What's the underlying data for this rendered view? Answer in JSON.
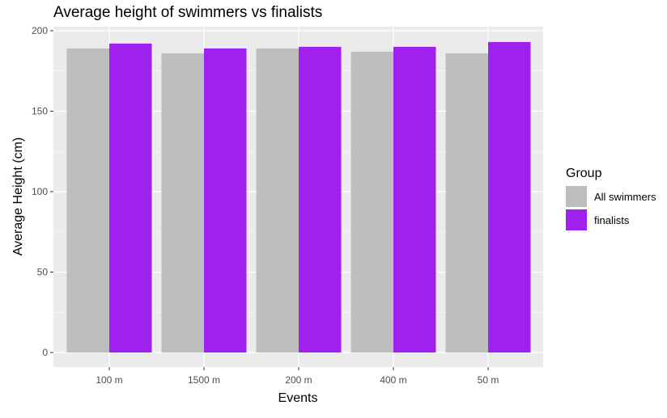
{
  "chart_data": {
    "type": "bar",
    "title": "Average height of swimmers vs finalists",
    "xlabel": "Events",
    "ylabel": "Average Height (cm)",
    "categories": [
      "100 m",
      "1500 m",
      "200 m",
      "400 m",
      "50 m"
    ],
    "series": [
      {
        "name": "All swimmers",
        "values": [
          189,
          186,
          189,
          187,
          186
        ],
        "color": "#bebebe"
      },
      {
        "name": "finalists",
        "values": [
          192,
          189,
          190,
          190,
          193
        ],
        "color": "#a020f0"
      }
    ],
    "yticks": [
      "0",
      "50",
      "100",
      "150",
      "200"
    ],
    "ylim": [
      0,
      200
    ],
    "legend": {
      "title": "Group",
      "placement": "right"
    },
    "grid": true,
    "panel_background": "#ebebeb",
    "gridline_color": "#ffffff"
  }
}
